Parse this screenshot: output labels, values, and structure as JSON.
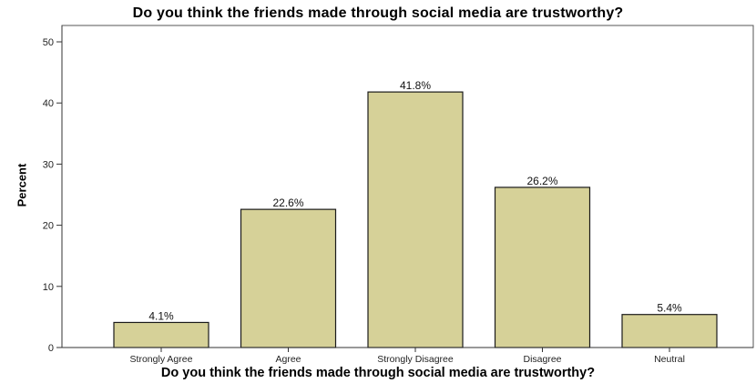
{
  "chart_data": {
    "type": "bar",
    "title": "Do you think the friends made through social media are trustworthy?",
    "xlabel": "Do you think the friends made through social media are trustworthy?",
    "ylabel": "Percent",
    "categories": [
      "Strongly Agree",
      "Agree",
      "Strongly Disagree",
      "Disagree",
      "Neutral"
    ],
    "values": [
      4.1,
      22.6,
      41.8,
      26.2,
      5.4
    ],
    "value_labels": [
      "4.1%",
      "22.6%",
      "41.8%",
      "26.2%",
      "5.4%"
    ],
    "ylim": [
      0,
      50
    ],
    "yticks": [
      0,
      10,
      20,
      30,
      40,
      50
    ],
    "grid": false,
    "colors": {
      "bar_fill": "#d6d198",
      "bar_stroke": "#1a1a1a",
      "frame": "#555555",
      "background": "#ffffff"
    }
  }
}
